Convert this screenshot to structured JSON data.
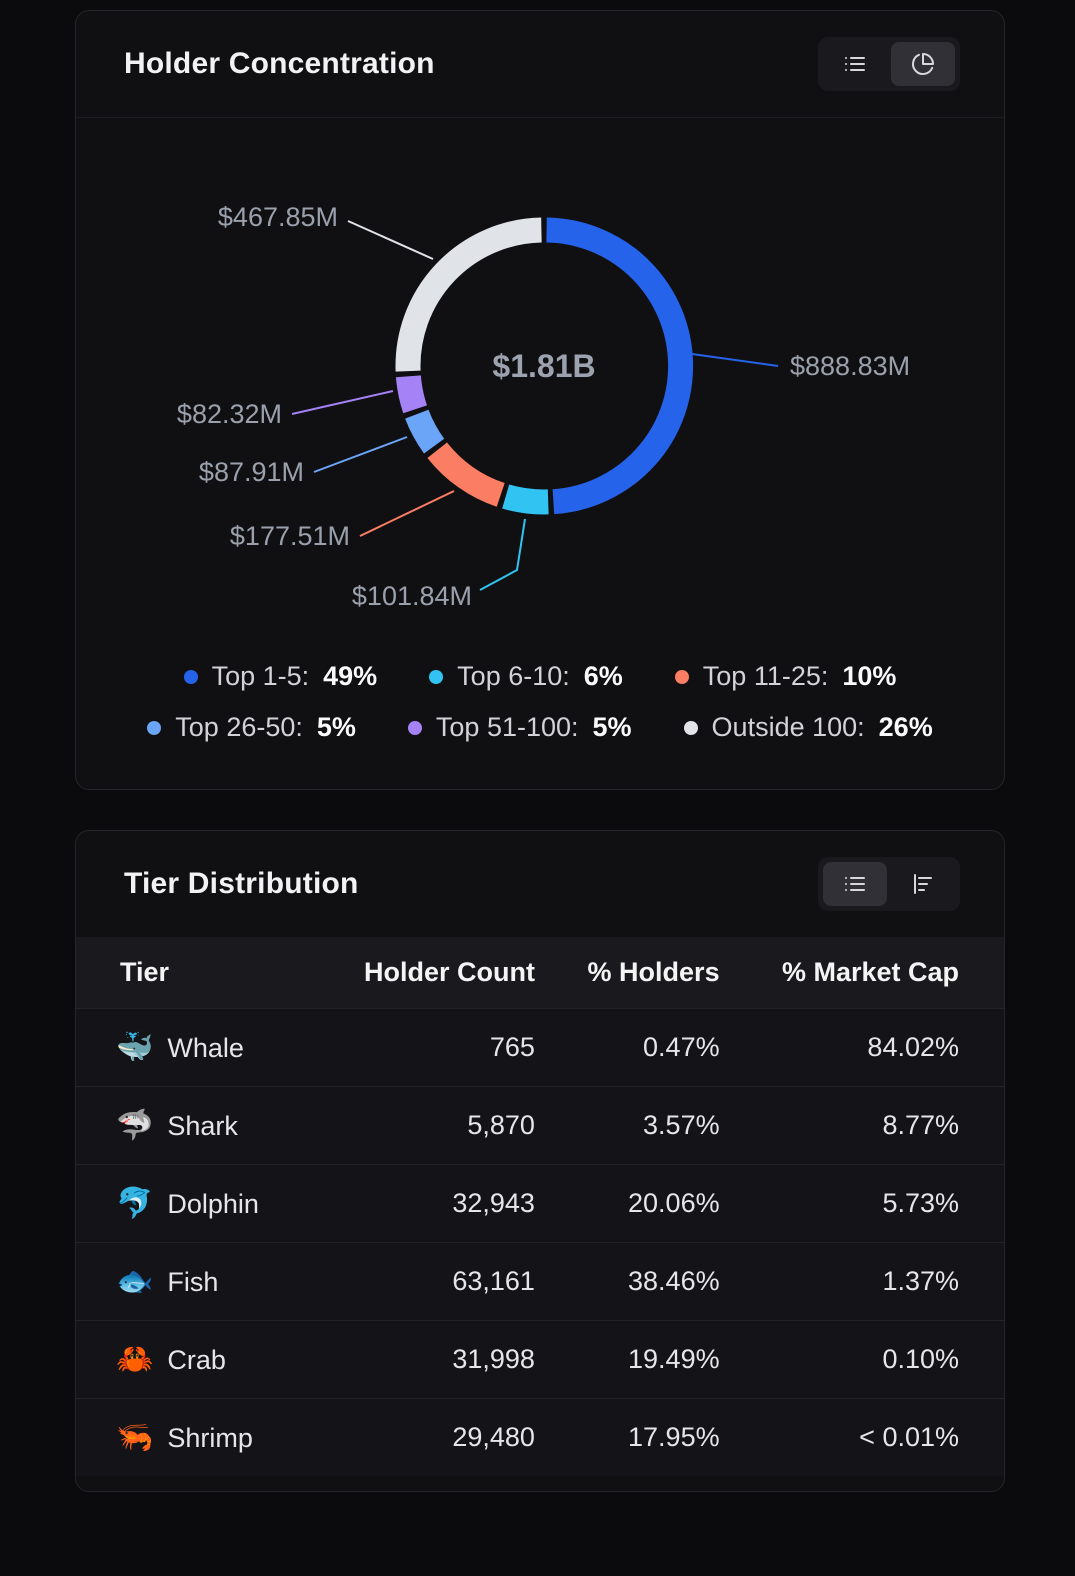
{
  "holder_concentration_card": {
    "title": "Holder Concentration"
  },
  "tier_distribution_card": {
    "title": "Tier Distribution"
  },
  "chart_data": [
    {
      "type": "pie",
      "variant": "donut",
      "title": "Holder Concentration",
      "center_total": "$1.81B",
      "legend_position": "bottom",
      "segments": [
        {
          "label": "Top 1-5",
          "percent_display": "49%",
          "value_musd": 888.83,
          "value_display": "$888.83M",
          "color": "#2563eb"
        },
        {
          "label": "Top 6-10",
          "percent_display": "6%",
          "value_musd": 101.84,
          "value_display": "$101.84M",
          "color": "#31c4f3"
        },
        {
          "label": "Top 11-25",
          "percent_display": "10%",
          "value_musd": 177.51,
          "value_display": "$177.51M",
          "color": "#fb7d63"
        },
        {
          "label": "Top 26-50",
          "percent_display": "5%",
          "value_musd": 87.91,
          "value_display": "$87.91M",
          "color": "#6aa5f8"
        },
        {
          "label": "Top 51-100",
          "percent_display": "5%",
          "value_musd": 82.32,
          "value_display": "$82.32M",
          "color": "#a583f7"
        },
        {
          "label": "Outside 100",
          "percent_display": "26%",
          "value_musd": 467.85,
          "value_display": "$467.85M",
          "color": "#e0e3e8"
        }
      ]
    },
    {
      "type": "table",
      "title": "Tier Distribution",
      "columns": [
        "Tier",
        "Holder Count",
        "% Holders",
        "% Market Cap"
      ],
      "rows": [
        {
          "emoji": "🐳",
          "tier": "Whale",
          "holder_count": "765",
          "pct_holders": "0.47%",
          "pct_market_cap": "84.02%"
        },
        {
          "emoji": "🦈",
          "tier": "Shark",
          "holder_count": "5,870",
          "pct_holders": "3.57%",
          "pct_market_cap": "8.77%"
        },
        {
          "emoji": "🐬",
          "tier": "Dolphin",
          "holder_count": "32,943",
          "pct_holders": "20.06%",
          "pct_market_cap": "5.73%"
        },
        {
          "emoji": "🐟",
          "tier": "Fish",
          "holder_count": "63,161",
          "pct_holders": "38.46%",
          "pct_market_cap": "1.37%"
        },
        {
          "emoji": "🦀",
          "tier": "Crab",
          "holder_count": "31,998",
          "pct_holders": "19.49%",
          "pct_market_cap": "0.10%"
        },
        {
          "emoji": "🦐",
          "tier": "Shrimp",
          "holder_count": "29,480",
          "pct_holders": "17.95%",
          "pct_market_cap": "< 0.01%"
        }
      ]
    }
  ]
}
